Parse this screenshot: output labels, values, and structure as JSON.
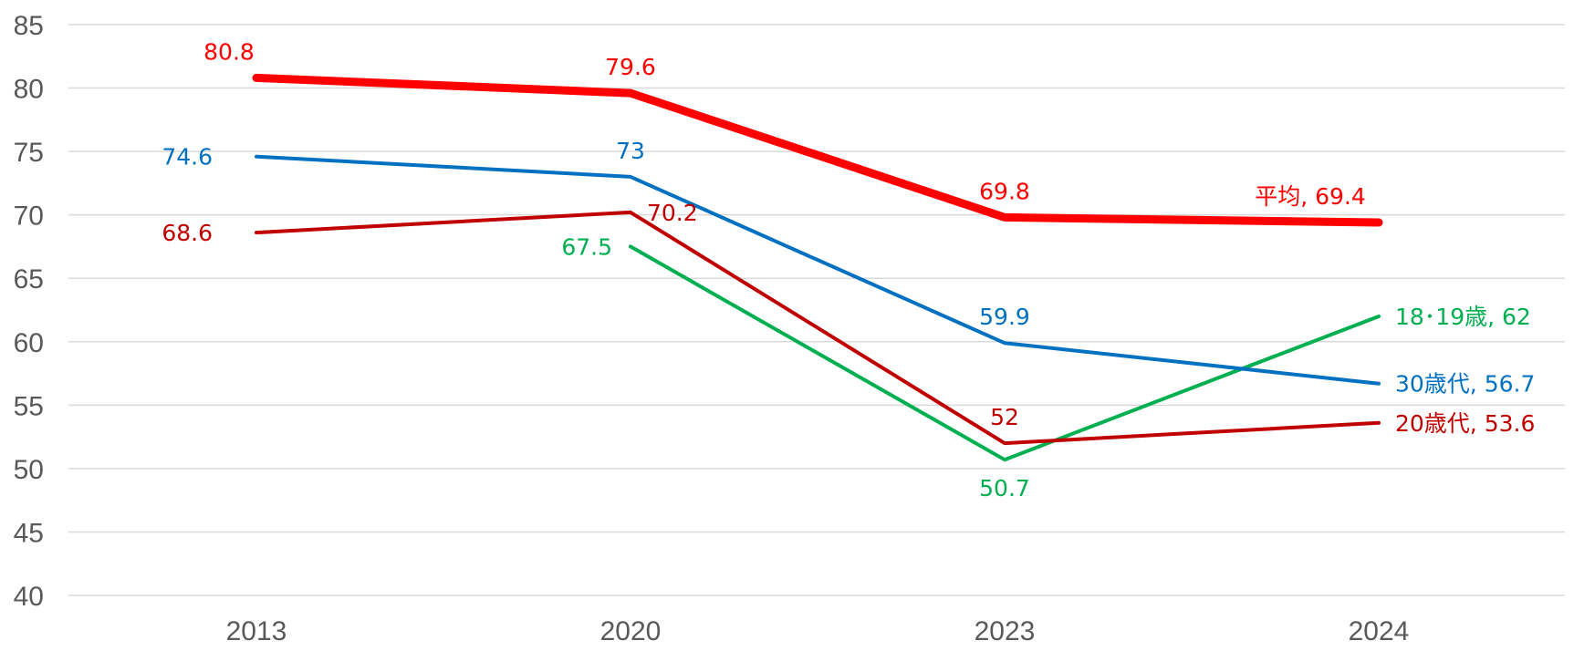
{
  "chart_data": {
    "type": "line",
    "title": "",
    "xlabel": "",
    "ylabel": "",
    "categories": [
      "2013",
      "2020",
      "2023",
      "2024"
    ],
    "ylim": [
      40,
      85
    ],
    "yticks": [
      "40",
      "45",
      "50",
      "55",
      "60",
      "65",
      "70",
      "75",
      "80",
      "85"
    ],
    "grid": true,
    "series": [
      {
        "name": "平均",
        "color": "#ff0000",
        "values": [
          80.8,
          79.6,
          69.8,
          69.4
        ],
        "labels": [
          "80.8",
          "79.6",
          "69.8",
          "平均, 69.4"
        ]
      },
      {
        "name": "30歳代",
        "color": "#0070c0",
        "values": [
          74.6,
          73,
          59.9,
          56.7
        ],
        "labels": [
          "74.6",
          "73",
          "59.9",
          "30歳代, 56.7"
        ]
      },
      {
        "name": "20歳代",
        "color": "#c00000",
        "values": [
          68.6,
          70.2,
          52,
          53.6
        ],
        "labels": [
          "68.6",
          "70.2",
          "52",
          "20歳代, 53.6"
        ]
      },
      {
        "name": "18･19歳",
        "color": "#00b050",
        "values": [
          null,
          67.5,
          50.7,
          62
        ],
        "labels": [
          "",
          "67.5",
          "50.7",
          "18･19歳, 62"
        ]
      }
    ]
  }
}
